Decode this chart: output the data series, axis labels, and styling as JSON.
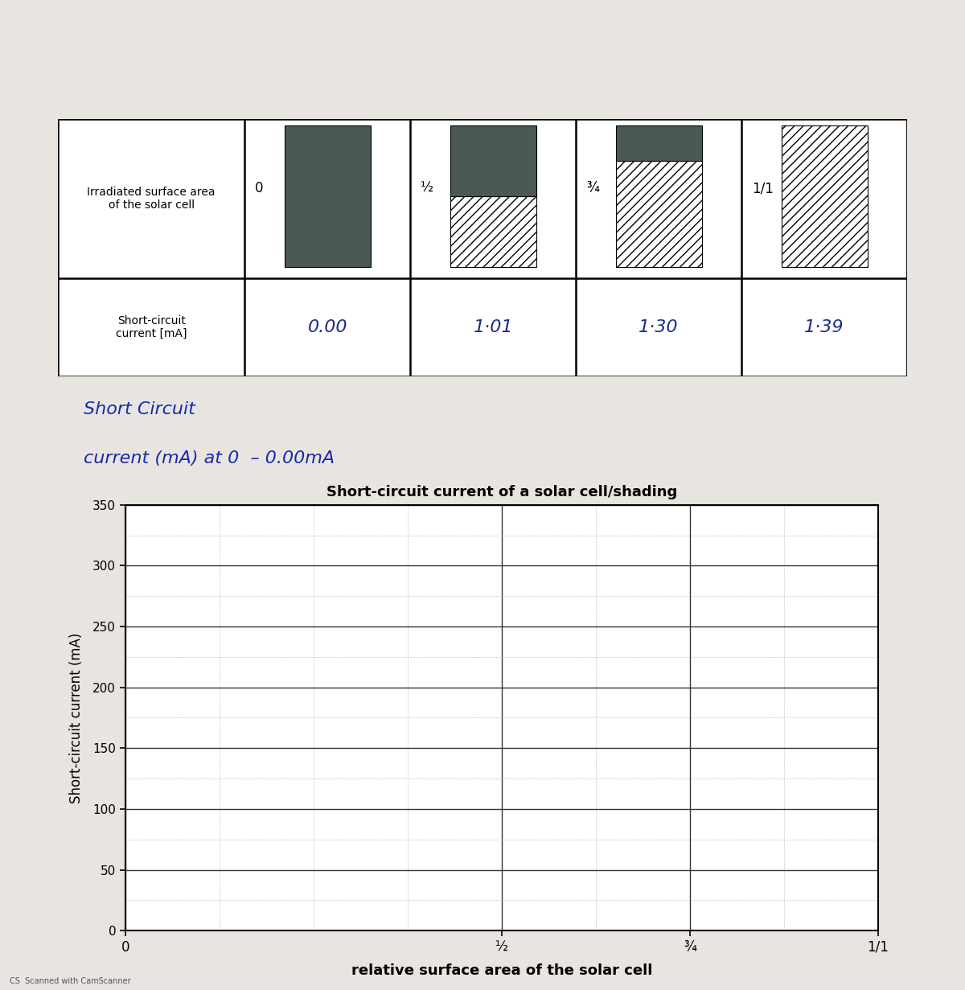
{
  "table_header_label": "Irradiated surface area\nof the solar cell",
  "table_current_label": "Short-circuit\ncurrent [mA]",
  "table_columns": [
    "0",
    "½",
    "¾",
    "1/1"
  ],
  "table_values": [
    "0.00",
    "1·01",
    "1·30",
    "1·39"
  ],
  "handwritten_line1": "Short Circuit",
  "handwritten_line2": "current (mA) at 0  – 0.00mA",
  "graph_title": "Short-circuit current of a solar cell/shading",
  "graph_ylabel": "Short-circuit current (mA)",
  "graph_xlabel": "relative surface area of the solar cell",
  "graph_xticks": [
    0,
    0.5,
    0.75,
    1.0
  ],
  "graph_xticklabels": [
    "0",
    "½",
    "¾",
    "1/1"
  ],
  "graph_yticks": [
    0,
    50,
    100,
    150,
    200,
    250,
    300,
    350
  ],
  "graph_xlim": [
    0,
    1.0
  ],
  "graph_ylim": [
    0,
    350
  ],
  "bg_color": "#f0eeeb",
  "cell_dark_color": "#4a5a52",
  "cs_text": "CS  Scanned with CamScanner"
}
